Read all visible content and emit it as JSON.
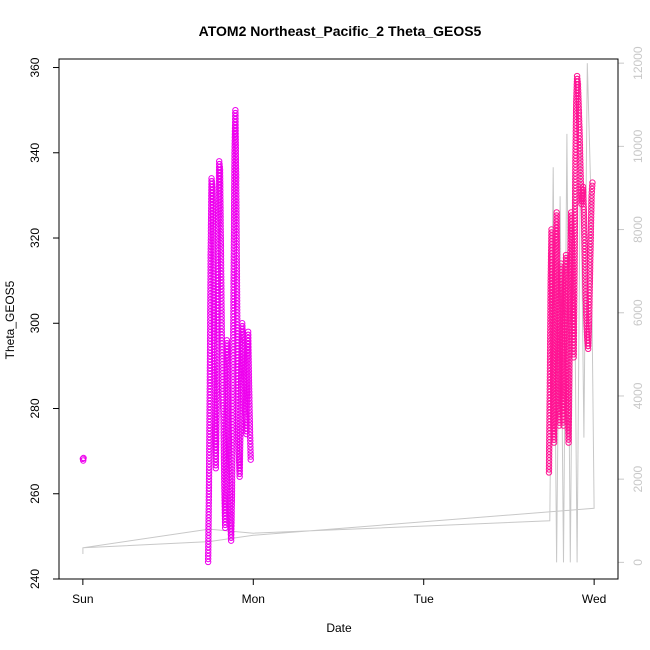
{
  "chart_data": {
    "type": "scatter",
    "title": "ATOM2 Northeast_Pacific_2 Theta_GEOS5",
    "xlabel": "Date",
    "ylabel": "Theta_GEOS5",
    "x_ticks": [
      "Sun",
      "Mon",
      "Tue",
      "Wed"
    ],
    "xlim_days": [
      -0.14,
      3.14
    ],
    "ylim": [
      240,
      362
    ],
    "y_ticks": [
      240,
      260,
      280,
      300,
      320,
      340,
      360
    ],
    "y2_ticks": [
      0,
      2000,
      4000,
      6000,
      8000,
      10000,
      12000
    ],
    "y2lim": [
      -400,
      12100
    ],
    "grid": false,
    "colors": {
      "points_early": "#ee00ee",
      "points_late": "#ff1493",
      "altitude_line": "#c8c8c8",
      "frame": "#000000",
      "right_axis": "#c8c8c8"
    },
    "series": [
      {
        "marker": "circle",
        "segments": [
          {
            "color": "#ee00ee",
            "x": [
              0.0,
              0.002,
              0.004
            ],
            "y": [
              268.2,
              267.8,
              268.4
            ]
          },
          {
            "color": "#ee00ee",
            "x": [
              0.735,
              0.74,
              0.745,
              0.75,
              0.755,
              0.76,
              0.765,
              0.77,
              0.775,
              0.78,
              0.785,
              0.79,
              0.795,
              0.8,
              0.805,
              0.81,
              0.815,
              0.82,
              0.825,
              0.83,
              0.835,
              0.84,
              0.845,
              0.85,
              0.855,
              0.86,
              0.865,
              0.87,
              0.875,
              0.88,
              0.885,
              0.89,
              0.895,
              0.9,
              0.905,
              0.91,
              0.915,
              0.92,
              0.925,
              0.93,
              0.935,
              0.94,
              0.945,
              0.95,
              0.955,
              0.96,
              0.965,
              0.97,
              0.975,
              0.98,
              0.985
            ],
            "y": [
              244,
              262,
              286,
              316,
              334,
              332,
              318,
              296,
              278,
              266,
              280,
              300,
              322,
              338,
              336,
              318,
              298,
              284,
              278,
              262,
              252,
              268,
              296,
              290,
              276,
              266,
              254,
              249,
              260,
              284,
              312,
              340,
              350,
              332,
              306,
              282,
              270,
              264,
              276,
              290,
              300,
              296,
              288,
              280,
              278,
              274,
              290,
              298,
              286,
              276,
              268
            ]
          }
        ]
      },
      {
        "marker": "circle",
        "segments": [
          {
            "color": "#ff1493",
            "x": [
              2.735,
              2.74,
              2.745,
              2.75,
              2.755,
              2.76,
              2.765,
              2.77,
              2.775,
              2.78,
              2.785,
              2.79,
              2.795,
              2.8,
              2.805,
              2.81,
              2.815,
              2.82,
              2.825,
              2.83,
              2.835,
              2.84,
              2.845,
              2.85,
              2.855,
              2.86,
              2.865,
              2.87,
              2.875,
              2.88,
              2.885,
              2.89,
              2.895,
              2.9,
              2.905,
              2.91,
              2.915,
              2.92,
              2.925,
              2.93,
              2.935,
              2.94,
              2.945,
              2.95,
              2.955,
              2.96,
              2.965,
              2.97,
              2.975,
              2.98,
              2.985,
              2.99
            ],
            "y": [
              265,
              286,
              310,
              322,
              300,
              276,
              272,
              296,
              318,
              326,
              304,
              282,
              276,
              296,
              314,
              304,
              284,
              276,
              288,
              308,
              316,
              298,
              280,
              272,
              290,
              314,
              326,
              318,
              304,
              292,
              312,
              338,
              352,
              358,
              356,
              350,
              344,
              336,
              328,
              330,
              332,
              326,
              316,
              306,
              300,
              296,
              294,
              300,
              310,
              320,
              330,
              333
            ]
          }
        ]
      }
    ],
    "altitude_line": {
      "axis": "right",
      "x": [
        0.0,
        0.0,
        0.74,
        1.0,
        2.74,
        2.76,
        2.78,
        2.8,
        2.82,
        2.84,
        2.86,
        2.88,
        2.9,
        2.92,
        2.94,
        2.96,
        2.98,
        3.0,
        1.0,
        0.74,
        0.0
      ],
      "y": [
        200,
        350,
        800,
        700,
        1000,
        9500,
        0,
        8800,
        0,
        10300,
        0,
        9400,
        0,
        10200,
        3000,
        12000,
        9000,
        1300,
        650,
        500,
        350
      ]
    }
  }
}
